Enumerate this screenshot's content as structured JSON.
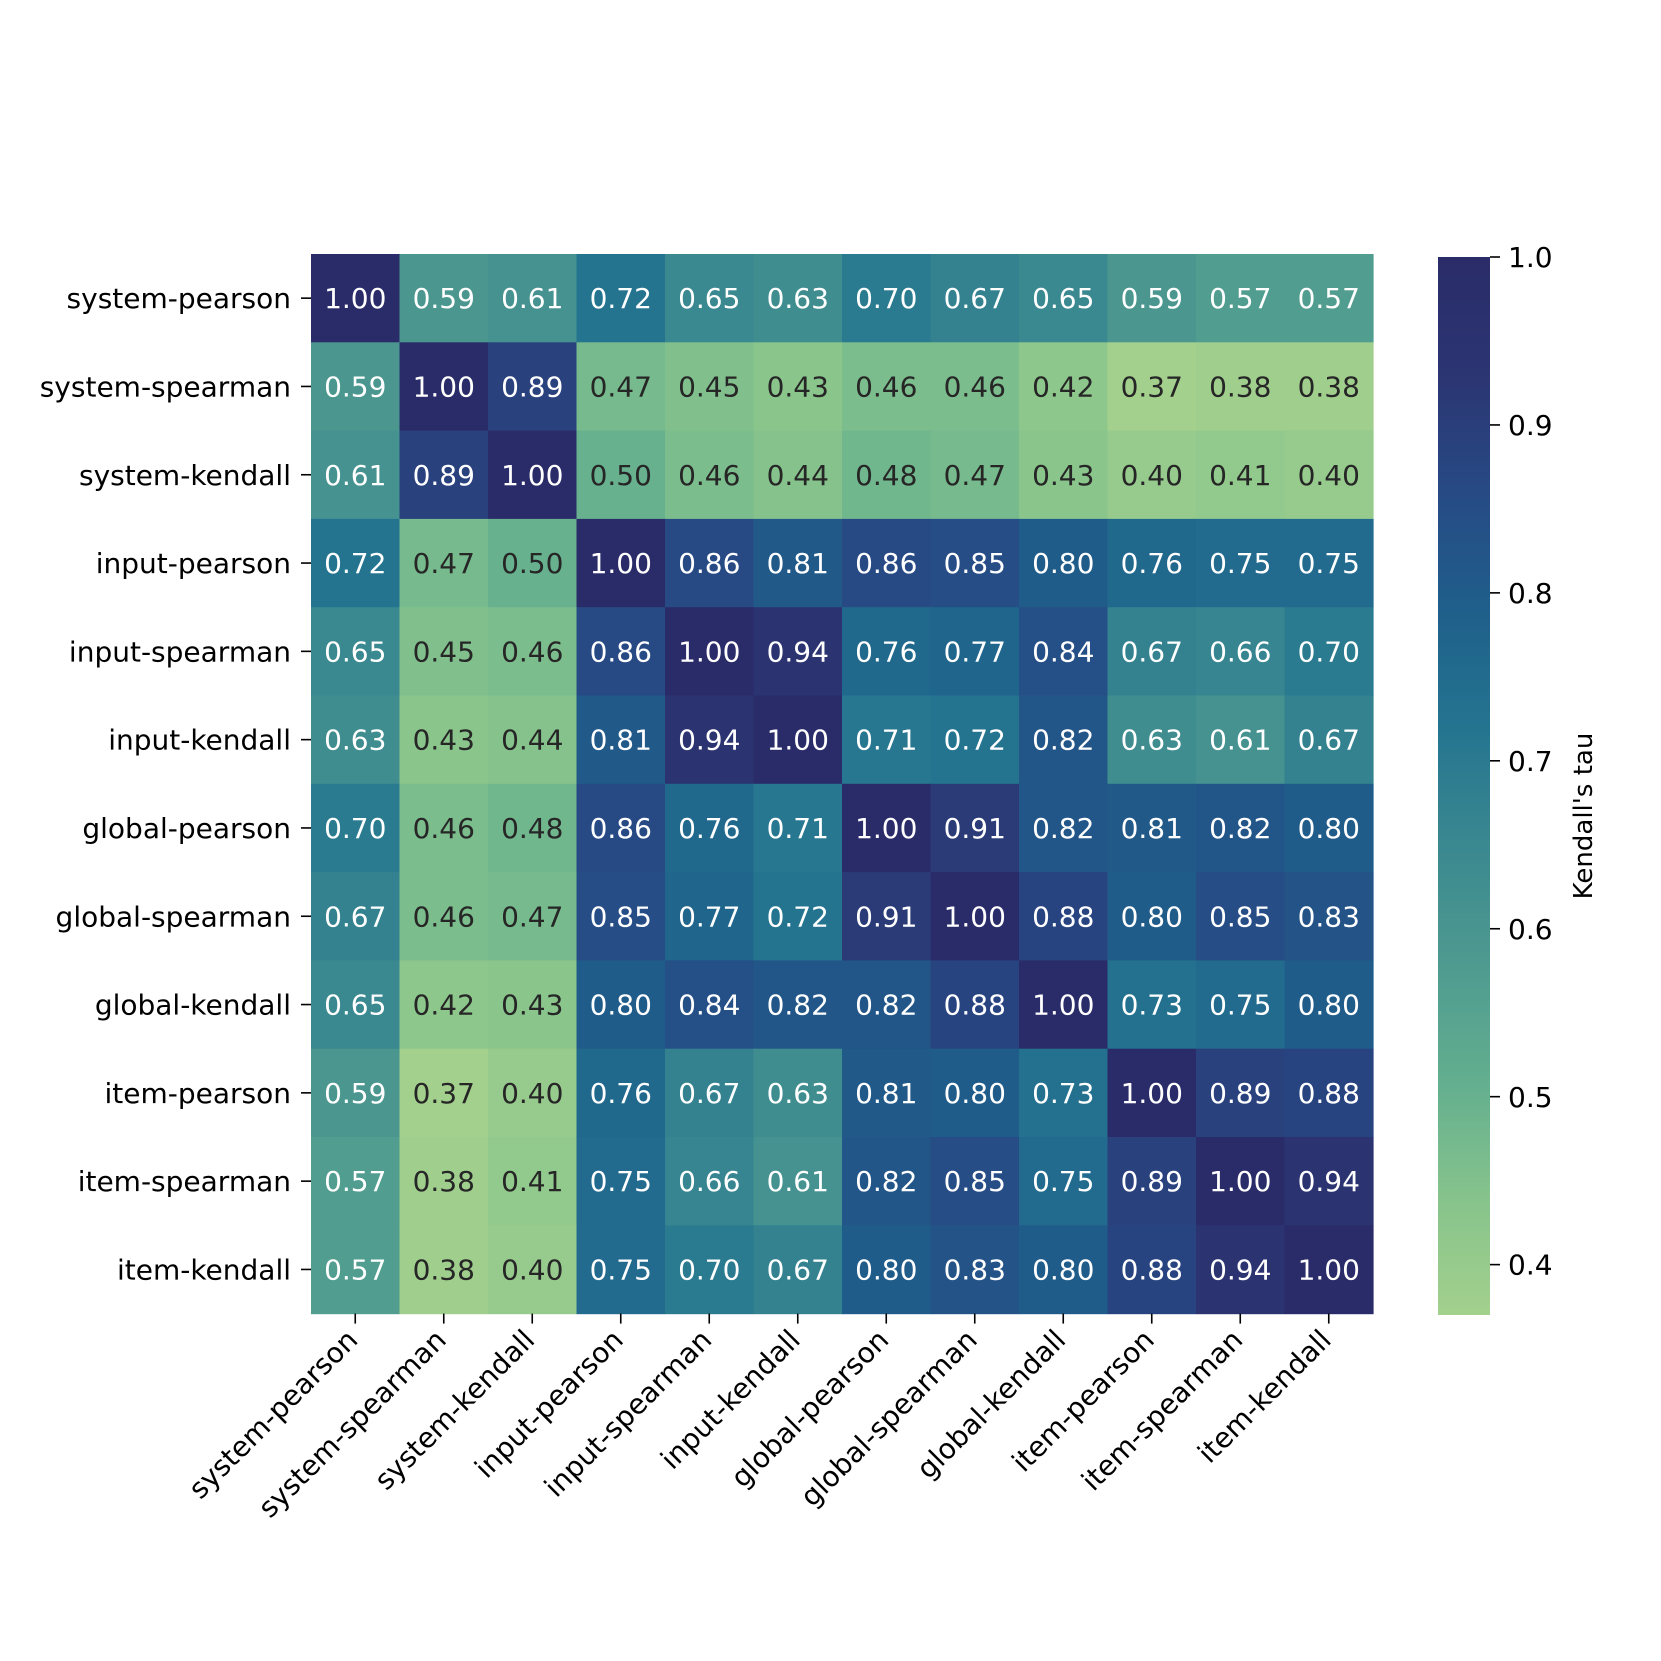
{
  "chart_data": {
    "type": "heatmap",
    "title": "",
    "xlabel": "",
    "ylabel": "",
    "labels": [
      "system-pearson",
      "system-spearman",
      "system-kendall",
      "input-pearson",
      "input-spearman",
      "input-kendall",
      "global-pearson",
      "global-spearman",
      "global-kendall",
      "item-pearson",
      "item-spearman",
      "item-kendall"
    ],
    "matrix": [
      [
        1.0,
        0.59,
        0.61,
        0.72,
        0.65,
        0.63,
        0.7,
        0.67,
        0.65,
        0.59,
        0.57,
        0.57
      ],
      [
        0.59,
        1.0,
        0.89,
        0.47,
        0.45,
        0.43,
        0.46,
        0.46,
        0.42,
        0.37,
        0.38,
        0.38
      ],
      [
        0.61,
        0.89,
        1.0,
        0.5,
        0.46,
        0.44,
        0.48,
        0.47,
        0.43,
        0.4,
        0.41,
        0.4
      ],
      [
        0.72,
        0.47,
        0.5,
        1.0,
        0.86,
        0.81,
        0.86,
        0.85,
        0.8,
        0.76,
        0.75,
        0.75
      ],
      [
        0.65,
        0.45,
        0.46,
        0.86,
        1.0,
        0.94,
        0.76,
        0.77,
        0.84,
        0.67,
        0.66,
        0.7
      ],
      [
        0.63,
        0.43,
        0.44,
        0.81,
        0.94,
        1.0,
        0.71,
        0.72,
        0.82,
        0.63,
        0.61,
        0.67
      ],
      [
        0.7,
        0.46,
        0.48,
        0.86,
        0.76,
        0.71,
        1.0,
        0.91,
        0.82,
        0.81,
        0.82,
        0.8
      ],
      [
        0.67,
        0.46,
        0.47,
        0.85,
        0.77,
        0.72,
        0.91,
        1.0,
        0.88,
        0.8,
        0.85,
        0.83
      ],
      [
        0.65,
        0.42,
        0.43,
        0.8,
        0.84,
        0.82,
        0.82,
        0.88,
        1.0,
        0.73,
        0.75,
        0.8
      ],
      [
        0.59,
        0.37,
        0.4,
        0.76,
        0.67,
        0.63,
        0.81,
        0.8,
        0.73,
        1.0,
        0.89,
        0.88
      ],
      [
        0.57,
        0.38,
        0.41,
        0.75,
        0.66,
        0.61,
        0.82,
        0.85,
        0.75,
        0.89,
        1.0,
        0.94
      ],
      [
        0.57,
        0.38,
        0.4,
        0.75,
        0.7,
        0.67,
        0.8,
        0.83,
        0.8,
        0.88,
        0.94,
        1.0
      ]
    ],
    "colorbar": {
      "label": "Kendall's tau",
      "range": [
        0.37,
        1.0
      ],
      "ticks": [
        "0.4",
        "0.5",
        "0.6",
        "0.7",
        "0.8",
        "0.9",
        "1.0"
      ],
      "colors": [
        "#a3d08d",
        "#86c38c",
        "#62ae8f",
        "#4e9a90",
        "#3a8890",
        "#247490",
        "#1f5f8b",
        "#274a85",
        "#2b3572",
        "#2a2c69"
      ]
    },
    "annotation_format": "two decimals",
    "text_color_light": "#ffffff",
    "text_color_dark": "#262626",
    "grid": false
  }
}
